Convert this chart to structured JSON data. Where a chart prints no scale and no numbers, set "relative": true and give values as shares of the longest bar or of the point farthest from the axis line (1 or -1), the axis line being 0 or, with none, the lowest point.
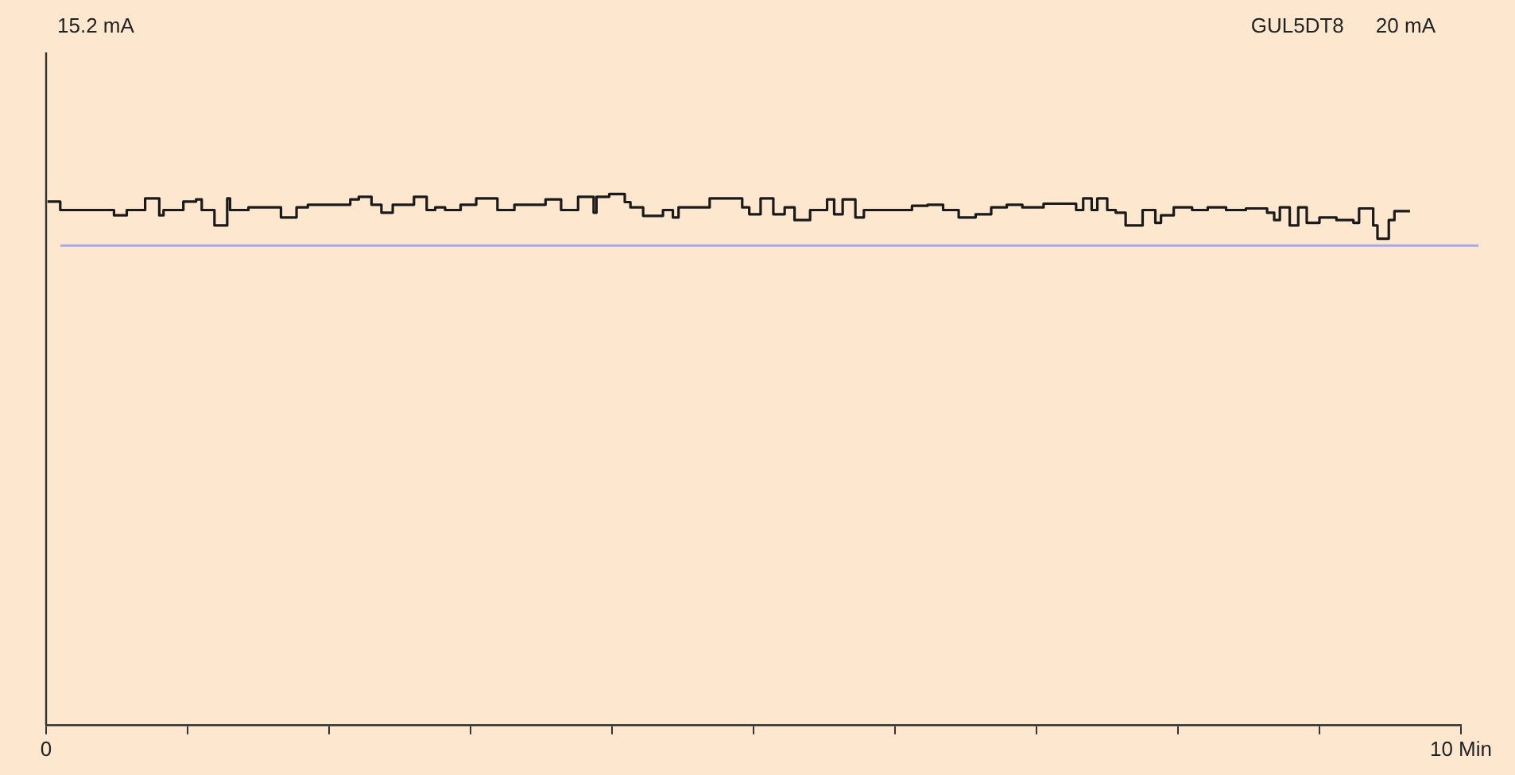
{
  "chart_data": {
    "type": "step",
    "relative": true,
    "x": [
      0.01,
      0.1,
      0.48,
      0.57,
      0.7,
      0.8,
      0.83,
      0.97,
      1.06,
      1.1,
      1.19,
      1.28,
      1.3,
      1.43,
      1.66,
      1.77,
      1.85,
      2.15,
      2.21,
      2.3,
      2.37,
      2.45,
      2.6,
      2.69,
      2.75,
      2.82,
      2.93,
      3.04,
      3.19,
      3.31,
      3.53,
      3.64,
      3.76,
      3.87,
      3.89,
      3.98,
      4.09,
      4.13,
      4.22,
      4.36,
      4.43,
      4.47,
      4.69,
      4.92,
      4.97,
      5.05,
      5.14,
      5.22,
      5.29,
      5.4,
      5.52,
      5.57,
      5.63,
      5.72,
      5.78,
      6.12,
      6.23,
      6.34,
      6.45,
      6.57,
      6.68,
      6.79,
      6.9,
      7.05,
      7.28,
      7.33,
      7.39,
      7.43,
      7.5,
      7.56,
      7.63,
      7.75,
      7.84,
      7.88,
      7.97,
      8.1,
      8.21,
      8.34,
      8.48,
      8.63,
      8.68,
      8.72,
      8.79,
      8.85,
      8.91,
      9.0,
      9.12,
      9.24,
      9.28,
      9.38,
      9.41,
      9.49,
      9.53,
      9.64
    ],
    "values": [
      0.986,
      0.97,
      0.96,
      0.97,
      0.992,
      0.96,
      0.97,
      0.986,
      0.99,
      0.97,
      0.941,
      0.992,
      0.97,
      0.975,
      0.956,
      0.975,
      0.98,
      0.99,
      0.995,
      0.98,
      0.965,
      0.98,
      0.995,
      0.97,
      0.975,
      0.97,
      0.98,
      0.992,
      0.97,
      0.98,
      0.99,
      0.97,
      0.995,
      0.965,
      0.995,
      1.0,
      0.985,
      0.975,
      0.959,
      0.97,
      0.956,
      0.975,
      0.992,
      0.975,
      0.962,
      0.992,
      0.962,
      0.975,
      0.951,
      0.97,
      0.99,
      0.962,
      0.99,
      0.956,
      0.97,
      0.978,
      0.98,
      0.97,
      0.956,
      0.962,
      0.975,
      0.98,
      0.975,
      0.982,
      0.97,
      0.992,
      0.97,
      0.992,
      0.97,
      0.965,
      0.941,
      0.97,
      0.946,
      0.96,
      0.975,
      0.97,
      0.975,
      0.97,
      0.973,
      0.965,
      0.951,
      0.975,
      0.941,
      0.975,
      0.946,
      0.956,
      0.951,
      0.946,
      0.973,
      0.941,
      0.916,
      0.951,
      0.968,
      0.968
    ],
    "color": "#1a1a1a",
    "marker": "none",
    "line_style": "solid",
    "grid": false,
    "legend": false,
    "xlim": [
      0,
      10
    ],
    "xticks": [
      0,
      {
        "value": 1,
        "label": null
      },
      {
        "value": 2,
        "label": null
      },
      {
        "value": 3,
        "label": null
      },
      {
        "value": 4,
        "label": null
      },
      {
        "value": 5,
        "label": null
      },
      {
        "value": 6,
        "label": null
      },
      {
        "value": 7,
        "label": null
      },
      {
        "value": 8,
        "label": null
      },
      {
        "value": 9,
        "label": null
      },
      {
        "value": 10,
        "label": "10 Min"
      }
    ],
    "ref_lines": [
      {
        "axis": "y",
        "value": 0.903,
        "color": "#a8a8f0"
      }
    ],
    "annotations": [
      "15.2 mA",
      "GUL5DT8",
      "20 mA"
    ]
  }
}
